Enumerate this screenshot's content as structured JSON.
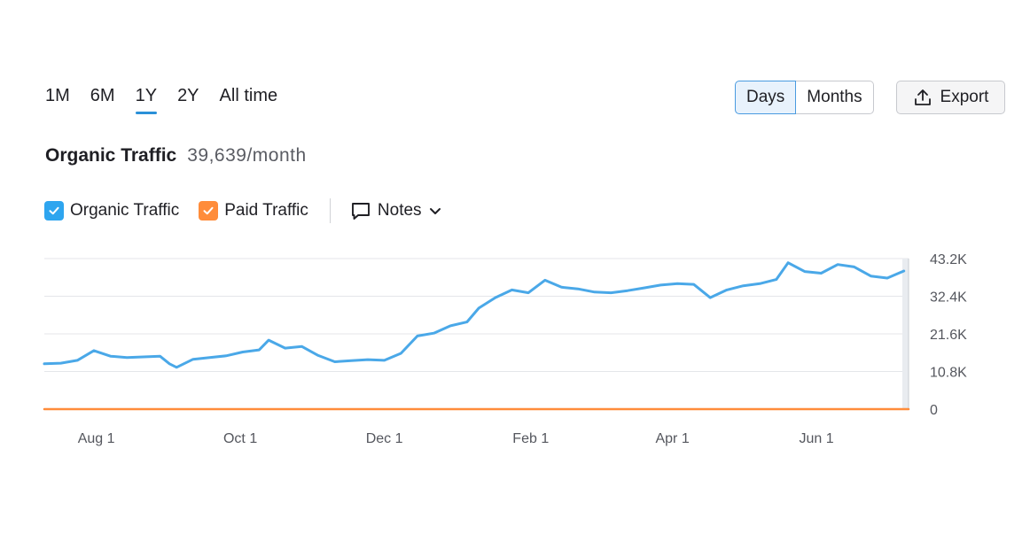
{
  "range_tabs": [
    {
      "label": "1M",
      "active": false
    },
    {
      "label": "6M",
      "active": false
    },
    {
      "label": "1Y",
      "active": true
    },
    {
      "label": "2Y",
      "active": false
    },
    {
      "label": "All time",
      "active": false
    }
  ],
  "granularity": {
    "days_label": "Days",
    "months_label": "Months",
    "selected": "Days"
  },
  "export_label": "Export",
  "header": {
    "title": "Organic Traffic",
    "value": "39,639/month"
  },
  "legend": {
    "organic": {
      "label": "Organic Traffic",
      "checked": true,
      "color": "#2ea5ef"
    },
    "paid": {
      "label": "Paid Traffic",
      "checked": true,
      "color": "#ff8c3a"
    },
    "notes_label": "Notes"
  },
  "icons": {
    "export": "upload-icon",
    "notes": "comment-icon",
    "dropdown": "chevron-down-icon",
    "check": "check-icon"
  },
  "chart_data": {
    "type": "line",
    "title": "Organic Traffic",
    "y_ticks": [
      "43.2K",
      "32.4K",
      "21.6K",
      "10.8K",
      "0"
    ],
    "ylim": [
      0,
      43200
    ],
    "x_ticks": [
      {
        "label": "Aug 1",
        "date": "2023-08-01"
      },
      {
        "label": "Oct 1",
        "date": "2023-10-01"
      },
      {
        "label": "Dec 1",
        "date": "2023-12-01"
      },
      {
        "label": "Feb 1",
        "date": "2024-02-01"
      },
      {
        "label": "Apr 1",
        "date": "2024-04-01"
      },
      {
        "label": "Jun 1",
        "date": "2024-06-01"
      }
    ],
    "xlim": [
      "2023-07-10",
      "2024-07-10"
    ],
    "grid": true,
    "series": [
      {
        "name": "Organic Traffic",
        "color": "#4aa8e8",
        "points": [
          [
            "2023-07-10",
            13000
          ],
          [
            "2023-07-17",
            13200
          ],
          [
            "2023-07-24",
            14000
          ],
          [
            "2023-07-31",
            16800
          ],
          [
            "2023-08-07",
            15200
          ],
          [
            "2023-08-14",
            14800
          ],
          [
            "2023-08-21",
            15000
          ],
          [
            "2023-08-28",
            15200
          ],
          [
            "2023-09-01",
            13000
          ],
          [
            "2023-09-04",
            12000
          ],
          [
            "2023-09-11",
            14300
          ],
          [
            "2023-09-18",
            14800
          ],
          [
            "2023-09-25",
            15300
          ],
          [
            "2023-10-02",
            16400
          ],
          [
            "2023-10-09",
            17000
          ],
          [
            "2023-10-13",
            19800
          ],
          [
            "2023-10-20",
            17500
          ],
          [
            "2023-10-27",
            18000
          ],
          [
            "2023-11-03",
            15400
          ],
          [
            "2023-11-10",
            13600
          ],
          [
            "2023-11-17",
            13900
          ],
          [
            "2023-11-24",
            14200
          ],
          [
            "2023-12-01",
            14000
          ],
          [
            "2023-12-08",
            16000
          ],
          [
            "2023-12-15",
            21000
          ],
          [
            "2023-12-22",
            21800
          ],
          [
            "2023-12-29",
            23900
          ],
          [
            "2024-01-05",
            25000
          ],
          [
            "2024-01-10",
            29000
          ],
          [
            "2024-01-17",
            32000
          ],
          [
            "2024-01-24",
            34200
          ],
          [
            "2024-01-31",
            33400
          ],
          [
            "2024-02-07",
            37000
          ],
          [
            "2024-02-14",
            35000
          ],
          [
            "2024-02-21",
            34500
          ],
          [
            "2024-02-28",
            33600
          ],
          [
            "2024-03-06",
            33400
          ],
          [
            "2024-03-13",
            34000
          ],
          [
            "2024-03-20",
            34800
          ],
          [
            "2024-03-27",
            35600
          ],
          [
            "2024-04-03",
            36000
          ],
          [
            "2024-04-10",
            35800
          ],
          [
            "2024-04-17",
            32000
          ],
          [
            "2024-04-24",
            34200
          ],
          [
            "2024-05-01",
            35400
          ],
          [
            "2024-05-08",
            36000
          ],
          [
            "2024-05-15",
            37200
          ],
          [
            "2024-05-20",
            42000
          ],
          [
            "2024-05-27",
            39500
          ],
          [
            "2024-06-03",
            39000
          ],
          [
            "2024-06-10",
            41500
          ],
          [
            "2024-06-17",
            40800
          ],
          [
            "2024-06-24",
            38200
          ],
          [
            "2024-07-01",
            37600
          ],
          [
            "2024-07-08",
            39639
          ]
        ]
      },
      {
        "name": "Paid Traffic",
        "color": "#ff8c3a",
        "points": [
          [
            "2023-07-10",
            0
          ],
          [
            "2024-07-10",
            0
          ]
        ]
      }
    ]
  }
}
